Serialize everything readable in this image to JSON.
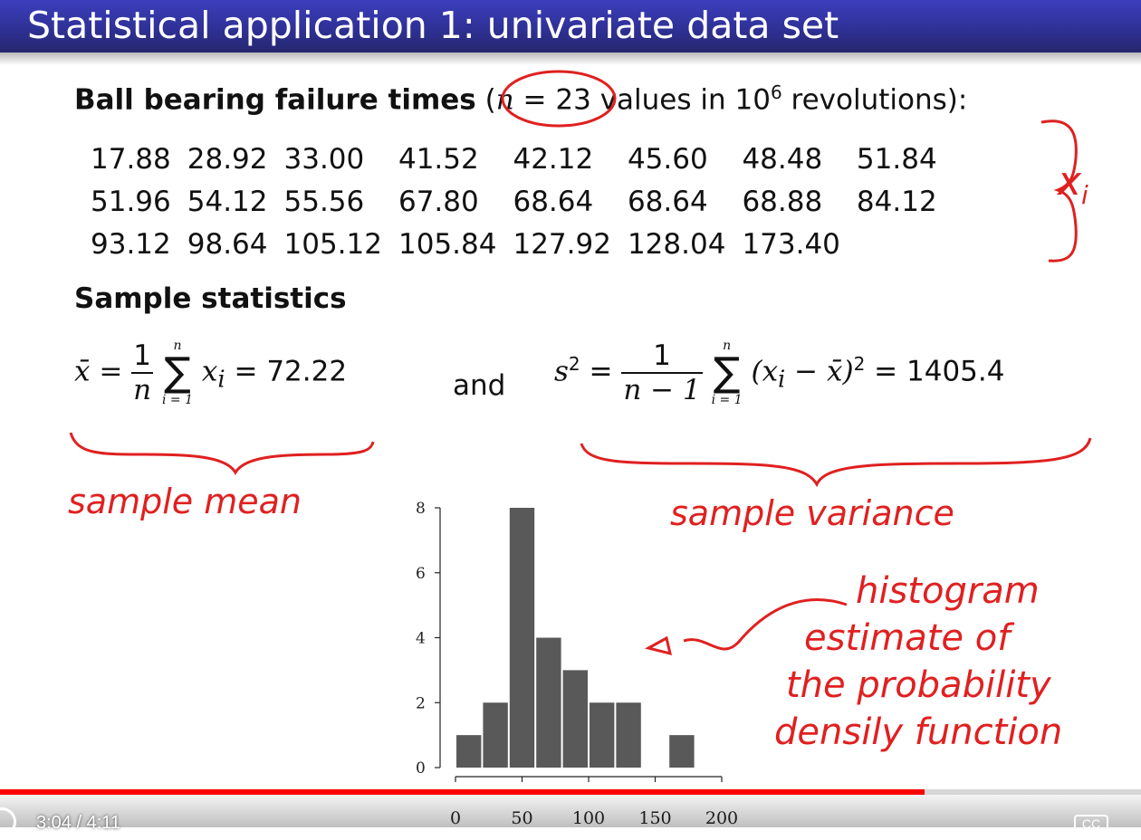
{
  "slide": {
    "title": "Statistical application 1: univariate data set",
    "heading": {
      "bold": "Ball bearing failure times",
      "open": "(",
      "n_symbol": "n",
      "n_value": "= 23",
      "rest": "values in 10",
      "exponent": "6",
      "tail": "revolutions):"
    },
    "data_rows": [
      [
        "17.88",
        "28.92",
        "33.00",
        "41.52",
        "42.12",
        "45.60",
        "48.48",
        "51.84"
      ],
      [
        "51.96",
        "54.12",
        "55.56",
        "67.80",
        "68.64",
        "68.64",
        "68.88",
        "84.12"
      ],
      [
        "93.12",
        "98.64",
        "105.12",
        "105.84",
        "127.92",
        "128.04",
        "173.40"
      ]
    ],
    "stats_heading": "Sample statistics",
    "mean_formula": {
      "lhs": "x̄ =",
      "num": "1",
      "den": "n",
      "sum_top": "n",
      "sum_bottom": "i = 1",
      "term": "x",
      "sub": "i",
      "rhs": "= 72.22"
    },
    "and_label": "and",
    "var_formula": {
      "lhs": "s",
      "sup": "2",
      "eq": "=",
      "num": "1",
      "den": "n − 1",
      "sum_top": "n",
      "sum_bottom": "i = 1",
      "term": "(x",
      "sub": "i",
      "term2": "− x̄)",
      "sup2": "2",
      "rhs": "= 1405.4"
    }
  },
  "annotations": {
    "xi": "x",
    "xi_sub": "i",
    "mean": "sample mean",
    "variance": "sample variance",
    "histogram_lines": [
      "histogram",
      "estimate of",
      "the probability",
      "densily function"
    ]
  },
  "chart_data": {
    "type": "bar",
    "title": "",
    "xlabel": "",
    "ylabel": "",
    "bins": [
      [
        0,
        20
      ],
      [
        20,
        40
      ],
      [
        40,
        60
      ],
      [
        60,
        80
      ],
      [
        80,
        100
      ],
      [
        100,
        120
      ],
      [
        120,
        140
      ],
      [
        140,
        160
      ],
      [
        160,
        180
      ]
    ],
    "values": [
      1,
      2,
      8,
      4,
      3,
      2,
      2,
      0,
      1
    ],
    "x_ticks": [
      0,
      50,
      100,
      150,
      200
    ],
    "y_ticks": [
      0,
      2,
      4,
      6,
      8
    ],
    "xlim": [
      0,
      200
    ],
    "ylim": [
      0,
      8
    ],
    "bar_color": "#595959"
  },
  "player": {
    "time": "3:04 / 4:11",
    "progress": 0.81,
    "cc_label": "CC"
  }
}
